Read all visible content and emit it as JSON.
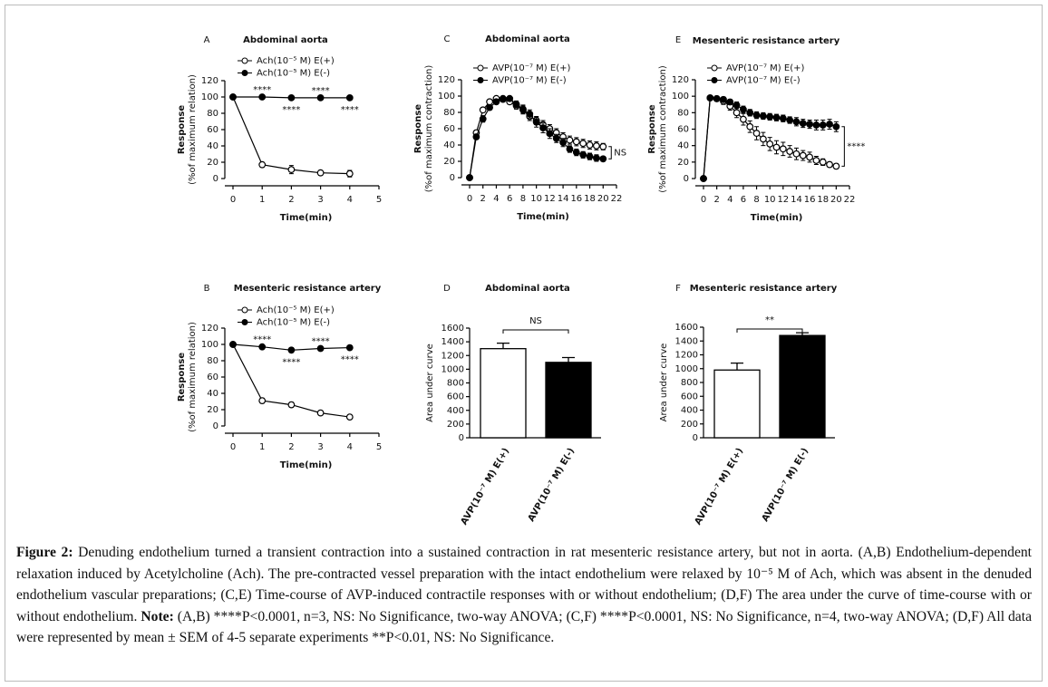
{
  "chart_data": [
    {
      "type": "line",
      "panel_label": "A",
      "title": "Abdominal aorta",
      "x_label": "Time(min)",
      "y_label": "Response",
      "y_label_2": "(%of maximum relation)",
      "x": [
        0,
        1,
        2,
        3,
        4
      ],
      "xlim": [
        0,
        5
      ],
      "xticks": [
        0,
        1,
        2,
        3,
        4,
        5
      ],
      "ylim": [
        0,
        120
      ],
      "yticks": [
        0,
        20,
        40,
        60,
        80,
        100,
        120
      ],
      "series": [
        {
          "name": "Ach(10⁻⁵ M) E(+)",
          "marker": "open",
          "color": "#000000",
          "values": [
            100,
            17,
            11,
            7,
            6
          ],
          "errors": [
            0,
            3,
            5,
            3,
            4
          ]
        },
        {
          "name": "Ach(10⁻⁵ M) E(-)",
          "marker": "filled",
          "color": "#000000",
          "values": [
            100,
            100,
            99,
            99,
            99
          ],
          "errors": [
            0,
            1,
            1,
            1,
            1
          ]
        }
      ],
      "annotations": [
        {
          "x": 1,
          "text": "****"
        },
        {
          "x": 2,
          "text": "****"
        },
        {
          "x": 3,
          "text": "****"
        },
        {
          "x": 4,
          "text": "****"
        }
      ]
    },
    {
      "type": "line",
      "panel_label": "B",
      "title": "Mesenteric resistance artery",
      "x_label": "Time(min)",
      "y_label": "Response",
      "y_label_2": "(%of maximum relation)",
      "x": [
        0,
        1,
        2,
        3,
        4
      ],
      "xlim": [
        0,
        5
      ],
      "xticks": [
        0,
        1,
        2,
        3,
        4,
        5
      ],
      "ylim": [
        0,
        120
      ],
      "yticks": [
        0,
        20,
        40,
        60,
        80,
        100,
        120
      ],
      "series": [
        {
          "name": "Ach(10⁻⁵ M) E(+)",
          "marker": "open",
          "color": "#000000",
          "values": [
            100,
            31,
            26,
            16,
            11
          ],
          "errors": [
            0,
            3,
            3,
            1,
            1
          ]
        },
        {
          "name": "Ach(10⁻⁵ M) E(-)",
          "marker": "filled",
          "color": "#000000",
          "values": [
            100,
            97,
            93,
            95,
            96
          ],
          "errors": [
            0,
            2,
            3,
            2,
            2
          ]
        }
      ],
      "annotations": [
        {
          "x": 1,
          "text": "****"
        },
        {
          "x": 2,
          "text": "****"
        },
        {
          "x": 3,
          "text": "****"
        },
        {
          "x": 4,
          "text": "****"
        }
      ]
    },
    {
      "type": "line",
      "panel_label": "C",
      "title": "Abdominal aorta",
      "x_label": "Time(min)",
      "y_label": "Response",
      "y_label_2": "(%of maximum contraction)",
      "x": [
        0,
        1,
        2,
        3,
        4,
        5,
        6,
        7,
        8,
        9,
        10,
        11,
        12,
        13,
        14,
        15,
        16,
        17,
        18,
        19,
        20
      ],
      "xlim": [
        0,
        22
      ],
      "xticks": [
        0,
        2,
        4,
        6,
        8,
        10,
        12,
        14,
        16,
        18,
        20,
        22
      ],
      "ylim": [
        0,
        120
      ],
      "yticks": [
        0,
        20,
        40,
        60,
        80,
        100,
        120
      ],
      "series": [
        {
          "name": "AVP(10⁻⁷ M) E(+)",
          "marker": "open",
          "color": "#000000",
          "values": [
            0,
            55,
            83,
            93,
            97,
            97,
            93,
            88,
            83,
            75,
            70,
            65,
            60,
            55,
            50,
            46,
            44,
            42,
            40,
            39,
            38
          ],
          "errors": [
            0,
            3,
            3,
            2,
            2,
            2,
            3,
            4,
            5,
            5,
            5,
            5,
            5,
            5,
            5,
            5,
            5,
            5,
            5,
            5,
            4
          ]
        },
        {
          "name": "AVP(10⁻⁷ M) E(-)",
          "marker": "filled",
          "color": "#000000",
          "values": [
            0,
            50,
            72,
            86,
            93,
            96,
            97,
            90,
            84,
            78,
            68,
            61,
            54,
            48,
            43,
            35,
            31,
            28,
            26,
            24,
            23
          ],
          "errors": [
            0,
            3,
            4,
            3,
            3,
            2,
            2,
            4,
            5,
            5,
            6,
            6,
            6,
            5,
            5,
            4,
            4,
            4,
            4,
            4,
            3
          ]
        }
      ],
      "comparison": "NS"
    },
    {
      "type": "bar",
      "panel_label": "D",
      "title": "Abdominal aorta",
      "y_label": "Area under curve",
      "categories": [
        "AVP(10⁻⁷ M) E(+)",
        "AVP(10⁻⁷ M) E(-)"
      ],
      "values": [
        1300,
        1100
      ],
      "errors": [
        80,
        70
      ],
      "colors": [
        "#ffffff",
        "#000000"
      ],
      "ylim": [
        0,
        1600
      ],
      "yticks": [
        0,
        200,
        400,
        600,
        800,
        1000,
        1200,
        1400,
        1600
      ],
      "comparison": "NS"
    },
    {
      "type": "line",
      "panel_label": "E",
      "title": "Mesenteric resistance artery",
      "x_label": "Time(min)",
      "y_label": "Response",
      "y_label_2": "(%of maximum contraction)",
      "x": [
        0,
        1,
        2,
        3,
        4,
        5,
        6,
        7,
        8,
        9,
        10,
        11,
        12,
        13,
        14,
        15,
        16,
        17,
        18,
        19,
        20
      ],
      "xlim": [
        0,
        22
      ],
      "xticks": [
        0,
        2,
        4,
        6,
        8,
        10,
        12,
        14,
        16,
        18,
        20,
        22
      ],
      "ylim": [
        0,
        120
      ],
      "yticks": [
        0,
        20,
        40,
        60,
        80,
        100,
        120
      ],
      "series": [
        {
          "name": "AVP(10⁻⁷ M) E(+)",
          "marker": "open",
          "color": "#000000",
          "values": [
            0,
            98,
            97,
            94,
            88,
            80,
            72,
            63,
            55,
            48,
            42,
            38,
            36,
            33,
            30,
            28,
            26,
            22,
            20,
            17,
            15
          ],
          "errors": [
            0,
            2,
            3,
            4,
            5,
            6,
            7,
            7,
            8,
            8,
            8,
            8,
            8,
            7,
            7,
            6,
            6,
            5,
            4,
            3,
            3
          ]
        },
        {
          "name": "AVP(10⁻⁷ M) E(-)",
          "marker": "filled",
          "color": "#000000",
          "values": [
            0,
            98,
            97,
            96,
            93,
            89,
            84,
            80,
            77,
            76,
            75,
            74,
            73,
            71,
            69,
            67,
            66,
            65,
            65,
            66,
            63
          ],
          "errors": [
            0,
            2,
            2,
            3,
            3,
            4,
            4,
            4,
            4,
            4,
            4,
            4,
            4,
            4,
            5,
            5,
            5,
            6,
            6,
            6,
            6
          ]
        }
      ],
      "comparison": "****"
    },
    {
      "type": "bar",
      "panel_label": "F",
      "title": "Mesenteric resistance artery",
      "y_label": "Area under curve",
      "categories": [
        "AVP(10⁻⁷ M) E(+)",
        "AVP(10⁻⁷ M) E(-)"
      ],
      "values": [
        980,
        1480
      ],
      "errors": [
        100,
        40
      ],
      "colors": [
        "#ffffff",
        "#000000"
      ],
      "ylim": [
        0,
        1600
      ],
      "yticks": [
        0,
        200,
        400,
        600,
        800,
        1000,
        1200,
        1400,
        1600
      ],
      "comparison": "**"
    }
  ],
  "caption": {
    "label": "Figure 2:",
    "text": " Denuding endothelium turned a transient contraction into a sustained contraction in rat mesenteric resistance artery, but not in aorta. (A,B) Endothelium-dependent relaxation induced by Acetylcholine (Ach). The pre-contracted vessel preparation with the intact endothelium were relaxed by 10⁻⁵ M of Ach, which was absent in the denuded endothelium vascular preparations; (C,E) Time-course of AVP-induced contractile responses with or without endothelium; (D,F) The area under the curve of time-course with or without endothelium. ",
    "note_label": "Note:",
    "note_text": " (A,B) ****P<0.0001, n=3, NS: No Significance, two-way ANOVA; (C,F) ****P<0.0001, NS: No Significance, n=4, two-way ANOVA; (D,F) All data were represented by mean ± SEM of 4-5 separate experiments **P<0.01, NS: No Significance."
  }
}
